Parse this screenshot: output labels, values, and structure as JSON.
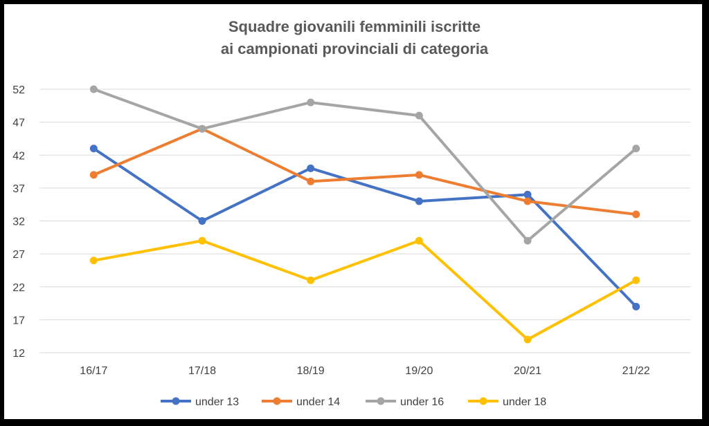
{
  "chart_data": {
    "type": "line",
    "title_lines": [
      "Squadre giovanili femminili iscritte",
      "ai campionati provinciali di categoria"
    ],
    "categories": [
      "16/17",
      "17/18",
      "18/19",
      "19/20",
      "20/21",
      "21/22"
    ],
    "y_ticks": [
      12,
      17,
      22,
      27,
      32,
      37,
      42,
      47,
      52
    ],
    "ylim": [
      12,
      54
    ],
    "grid": true,
    "legend_position": "bottom",
    "series": [
      {
        "name": "under 13",
        "color": "#4472C4",
        "values": [
          43,
          32,
          40,
          35,
          36,
          19
        ]
      },
      {
        "name": "under 14",
        "color": "#ED7D31",
        "values": [
          39,
          46,
          38,
          39,
          35,
          33
        ]
      },
      {
        "name": "under 16",
        "color": "#A5A5A5",
        "values": [
          52,
          46,
          50,
          48,
          29,
          43
        ]
      },
      {
        "name": "under 18",
        "color": "#FFC000",
        "values": [
          26,
          29,
          23,
          29,
          14,
          23
        ]
      }
    ]
  }
}
